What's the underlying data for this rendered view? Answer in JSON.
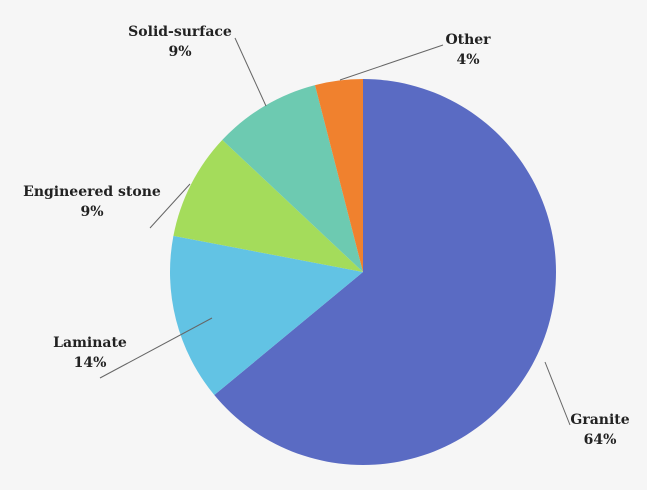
{
  "chart_data": {
    "type": "pie",
    "categories": [
      "Granite",
      "Laminate",
      "Engineered stone",
      "Solid-surface",
      "Other"
    ],
    "values": [
      64,
      14,
      9,
      9,
      4
    ],
    "value_labels": [
      "64%",
      "14%",
      "9%",
      "9%",
      "4%"
    ],
    "colors": [
      "#5a6bc3",
      "#62c3e4",
      "#a4dc5b",
      "#6dcab1",
      "#f0812e"
    ]
  }
}
